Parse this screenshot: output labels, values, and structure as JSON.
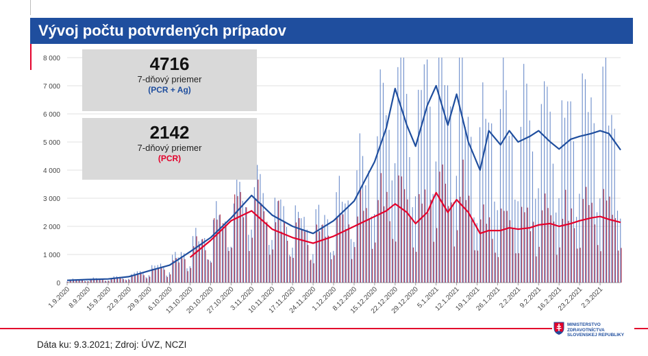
{
  "header": {
    "title": "Vývoj počtu potvrdených prípadov"
  },
  "stats": [
    {
      "value": "4716",
      "label": "7-dňový priemer",
      "sub": "(PCR + Ag)",
      "sub_color": "#1f4e9e"
    },
    {
      "value": "2142",
      "label": "7-dňový priemer",
      "sub": "(PCR)",
      "sub_color": "#e3002b"
    }
  ],
  "footer": {
    "source": "Dáta ku: 9.3.2021; Zdroj: ÚVZ, NCZI"
  },
  "logo": {
    "lines": [
      "MINISTERSTVO",
      "ZDRAVOTNÍCTVA",
      "SLOVENSKEJ REPUBLIKY"
    ]
  },
  "colors": {
    "pcr_ag": "#1f4e9e",
    "pcr": "#e3002b",
    "pcr_bar": "#a01e3c",
    "banner": "#1f4e9e"
  },
  "chart_data": {
    "type": "bar+line",
    "ylim": [
      0,
      8000
    ],
    "ytick_labels": [
      "0",
      "1 000",
      "2 000",
      "3 000",
      "4 000",
      "5 000",
      "6 000",
      "7 000",
      "8 000"
    ],
    "grid": true,
    "x_start": "2020-09-01",
    "x_end": "2021-03-09",
    "xtick_labels": [
      "1.9.2020",
      "8.9.2020",
      "15.9.2020",
      "22.9.2020",
      "29.9.2020",
      "6.10.2020",
      "13.10.2020",
      "20.10.2020",
      "27.10.2020",
      "3.11.2020",
      "10.11.2020",
      "17.11.2020",
      "24.11.2020",
      "1.12.2020",
      "8.12.2020",
      "15.12.2020",
      "22.12.2020",
      "29.12.2020",
      "5.1.2021",
      "12.1.2021",
      "19.1.2021",
      "26.1.2021",
      "2.2.2021",
      "9.2.2021",
      "16.2.2021",
      "23.2.2021",
      "2.3.2021"
    ],
    "series": [
      {
        "kind": "line",
        "color": "#1f4e9e",
        "points": [
          [
            "2020-09-01",
            80
          ],
          [
            "2020-09-08",
            110
          ],
          [
            "2020-09-15",
            130
          ],
          [
            "2020-09-22",
            210
          ],
          [
            "2020-09-29",
            420
          ],
          [
            "2020-10-06",
            620
          ],
          [
            "2020-10-13",
            1100
          ],
          [
            "2020-10-20",
            1600
          ],
          [
            "2020-10-27",
            2300
          ],
          [
            "2020-11-03",
            3100
          ],
          [
            "2020-11-10",
            2400
          ],
          [
            "2020-11-17",
            2000
          ],
          [
            "2020-11-24",
            1750
          ],
          [
            "2020-12-01",
            2200
          ],
          [
            "2020-12-08",
            2900
          ],
          [
            "2020-12-15",
            4300
          ],
          [
            "2020-12-19",
            5500
          ],
          [
            "2020-12-22",
            6900
          ],
          [
            "2020-12-26",
            5600
          ],
          [
            "2020-12-29",
            4850
          ],
          [
            "2021-01-02",
            6300
          ],
          [
            "2021-01-05",
            7000
          ],
          [
            "2021-01-09",
            5600
          ],
          [
            "2021-01-12",
            6700
          ],
          [
            "2021-01-16",
            5000
          ],
          [
            "2021-01-20",
            4000
          ],
          [
            "2021-01-23",
            5400
          ],
          [
            "2021-01-27",
            4900
          ],
          [
            "2021-01-30",
            5400
          ],
          [
            "2021-02-02",
            5000
          ],
          [
            "2021-02-06",
            5200
          ],
          [
            "2021-02-09",
            5400
          ],
          [
            "2021-02-13",
            5000
          ],
          [
            "2021-02-16",
            4750
          ],
          [
            "2021-02-20",
            5100
          ],
          [
            "2021-02-23",
            5200
          ],
          [
            "2021-02-27",
            5300
          ],
          [
            "2021-03-02",
            5400
          ],
          [
            "2021-03-05",
            5300
          ],
          [
            "2021-03-09",
            4716
          ]
        ]
      },
      {
        "kind": "line",
        "color": "#e3002b",
        "points": [
          [
            "2020-10-13",
            900
          ],
          [
            "2020-10-20",
            1500
          ],
          [
            "2020-10-27",
            2200
          ],
          [
            "2020-11-03",
            2550
          ],
          [
            "2020-11-10",
            1900
          ],
          [
            "2020-11-17",
            1600
          ],
          [
            "2020-11-24",
            1400
          ],
          [
            "2020-12-01",
            1650
          ],
          [
            "2020-12-08",
            2000
          ],
          [
            "2020-12-15",
            2350
          ],
          [
            "2020-12-19",
            2550
          ],
          [
            "2020-12-22",
            2800
          ],
          [
            "2020-12-26",
            2500
          ],
          [
            "2020-12-29",
            2100
          ],
          [
            "2021-01-02",
            2500
          ],
          [
            "2021-01-05",
            3200
          ],
          [
            "2021-01-09",
            2500
          ],
          [
            "2021-01-12",
            2950
          ],
          [
            "2021-01-16",
            2500
          ],
          [
            "2021-01-20",
            1750
          ],
          [
            "2021-01-23",
            1850
          ],
          [
            "2021-01-27",
            1850
          ],
          [
            "2021-01-30",
            1950
          ],
          [
            "2021-02-02",
            1900
          ],
          [
            "2021-02-06",
            1950
          ],
          [
            "2021-02-09",
            2050
          ],
          [
            "2021-02-13",
            2100
          ],
          [
            "2021-02-16",
            2000
          ],
          [
            "2021-02-20",
            2100
          ],
          [
            "2021-02-23",
            2200
          ],
          [
            "2021-02-27",
            2300
          ],
          [
            "2021-03-02",
            2350
          ],
          [
            "2021-03-05",
            2250
          ],
          [
            "2021-03-09",
            2142
          ]
        ]
      }
    ]
  }
}
